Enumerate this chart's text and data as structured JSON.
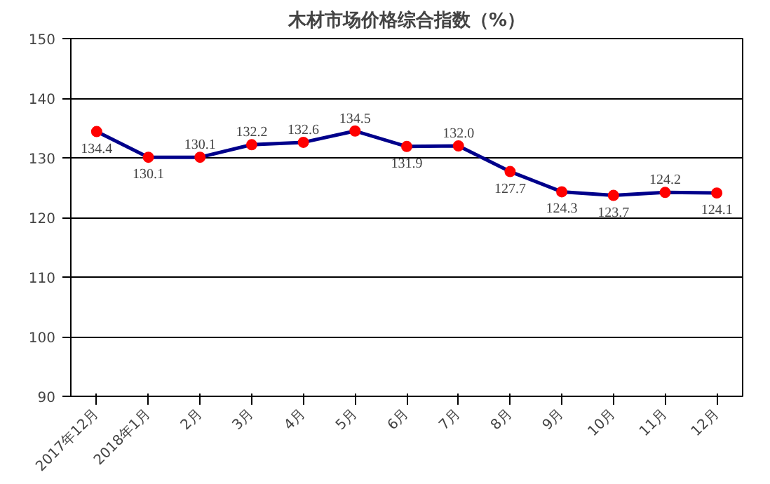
{
  "chart_data": {
    "type": "line",
    "title": "木材市场价格综合指数（%）",
    "categories": [
      "2017年12月",
      "2018年1月",
      "2月",
      "3月",
      "4月",
      "5月",
      "6月",
      "7月",
      "8月",
      "9月",
      "10月",
      "11月",
      "12月"
    ],
    "series": [
      {
        "color": "#00008b",
        "values": [
          134.4,
          130.1,
          130.1,
          132.2,
          132.6,
          134.5,
          131.9,
          132.0,
          127.7,
          124.3,
          123.7,
          124.2,
          124.1
        ],
        "value_labels": [
          "134.4",
          "130.1",
          "130.1",
          "132.2",
          "132.6",
          "134.5",
          "131.9",
          "132.0",
          "127.7",
          "124.3",
          "123.7",
          "124.2",
          "124.1"
        ]
      }
    ],
    "ylim": [
      90,
      150
    ],
    "yticks": [
      90,
      100,
      110,
      120,
      130,
      140,
      150
    ],
    "grid": "y",
    "marker": "circle"
  }
}
